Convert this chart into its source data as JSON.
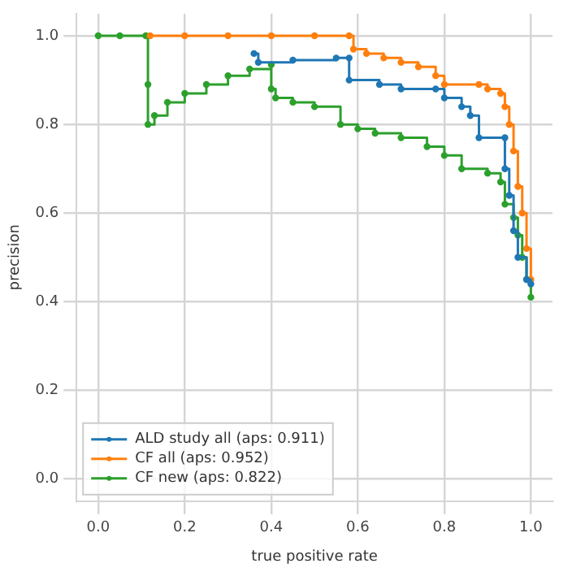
{
  "chart_data": {
    "type": "step",
    "xlabel": "true positive rate",
    "ylabel": "precision",
    "xlim": [
      -0.05,
      1.05
    ],
    "ylim": [
      -0.05,
      1.05
    ],
    "xticks": [
      {
        "value": 0,
        "label": "0.0"
      },
      {
        "value": 0.2,
        "label": "0.2"
      },
      {
        "value": 0.4,
        "label": "0.4"
      },
      {
        "value": 0.6,
        "label": "0.6"
      },
      {
        "value": 0.8,
        "label": "0.8"
      },
      {
        "value": 1,
        "label": "1.0"
      }
    ],
    "yticks": [
      {
        "value": 0,
        "label": "0.0"
      },
      {
        "value": 0.2,
        "label": "0.2"
      },
      {
        "value": 0.4,
        "label": "0.4"
      },
      {
        "value": 0.6,
        "label": "0.6"
      },
      {
        "value": 0.8,
        "label": "0.8"
      },
      {
        "value": 1,
        "label": "1.0"
      }
    ],
    "grid": true,
    "legend": "bottom left",
    "marker": "circle",
    "line_style": "solid",
    "series": [
      {
        "name": "ALD study all (aps: 0.911)",
        "color": "#1f77b4",
        "x": [
          0.36,
          0.37,
          0.45,
          0.55,
          0.58,
          0.58,
          0.65,
          0.7,
          0.78,
          0.8,
          0.84,
          0.86,
          0.88,
          0.94,
          0.94,
          0.95,
          0.96,
          0.97,
          0.99,
          1.0
        ],
        "values": [
          0.96,
          0.94,
          0.945,
          0.95,
          0.95,
          0.9,
          0.89,
          0.88,
          0.88,
          0.86,
          0.84,
          0.82,
          0.77,
          0.77,
          0.7,
          0.64,
          0.56,
          0.5,
          0.45,
          0.44
        ]
      },
      {
        "name": "CF all (aps: 0.952)",
        "color": "#ff7f0e",
        "x": [
          0.12,
          0.2,
          0.3,
          0.4,
          0.5,
          0.58,
          0.59,
          0.62,
          0.66,
          0.7,
          0.74,
          0.78,
          0.8,
          0.88,
          0.9,
          0.93,
          0.94,
          0.95,
          0.96,
          0.97,
          0.98,
          0.99,
          1.0
        ],
        "values": [
          1,
          1,
          1,
          1,
          1,
          1,
          0.97,
          0.96,
          0.95,
          0.94,
          0.93,
          0.91,
          0.89,
          0.89,
          0.88,
          0.87,
          0.84,
          0.8,
          0.74,
          0.66,
          0.6,
          0.52,
          0.45
        ]
      },
      {
        "name": "CF new (aps: 0.822)",
        "color": "#2ca02c",
        "x": [
          0,
          0.05,
          0.11,
          0.115,
          0.115,
          0.13,
          0.16,
          0.2,
          0.25,
          0.3,
          0.35,
          0.4,
          0.4,
          0.41,
          0.45,
          0.5,
          0.56,
          0.6,
          0.64,
          0.7,
          0.76,
          0.8,
          0.84,
          0.9,
          0.93,
          0.94,
          0.96,
          0.97,
          0.98,
          0.99,
          1.0
        ],
        "values": [
          1,
          1,
          1,
          0.89,
          0.8,
          0.82,
          0.85,
          0.87,
          0.89,
          0.91,
          0.925,
          0.935,
          0.88,
          0.86,
          0.85,
          0.84,
          0.8,
          0.79,
          0.78,
          0.77,
          0.75,
          0.73,
          0.7,
          0.69,
          0.67,
          0.62,
          0.59,
          0.55,
          0.5,
          0.45,
          0.41
        ]
      }
    ]
  }
}
